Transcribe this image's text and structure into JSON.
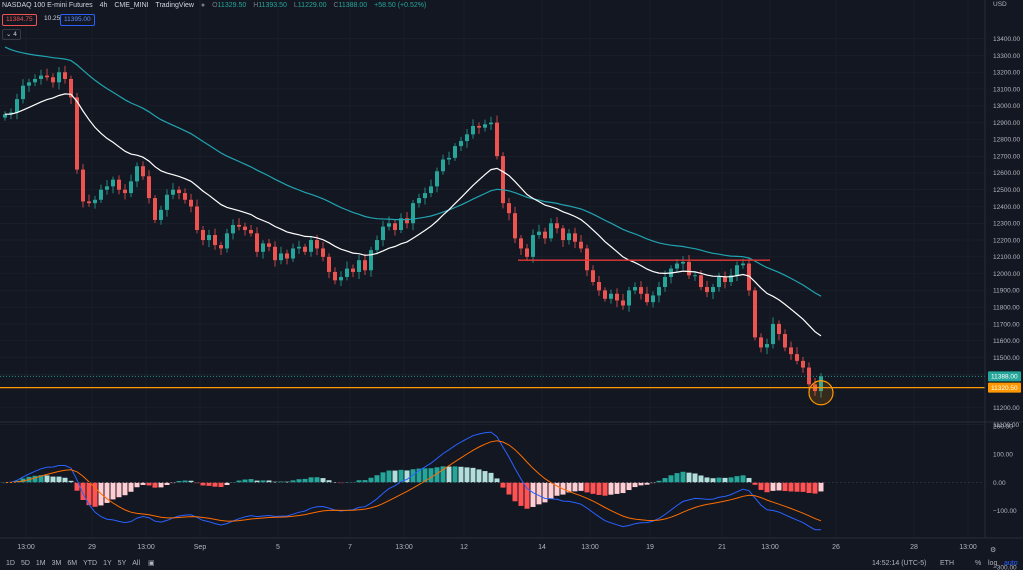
{
  "header": {
    "symbol": "NASDAQ 100 E-mini Futures",
    "interval": "4h",
    "exchange": "CME_MINI",
    "source": "TradingView",
    "o_label": "O",
    "o_value": "11329.50",
    "h_label": "H",
    "h_value": "11393.50",
    "l_label": "L",
    "l_value": "11229.00",
    "c_label": "C",
    "c_value": "11388.00",
    "change": "+58.50 (+0.52%)",
    "sell_price": "11384.75",
    "spread": "10.25",
    "buy_price": "11395.00",
    "indicator_count": "4",
    "currency": "USD"
  },
  "colors": {
    "bg": "#131722",
    "up": "#26a69a",
    "down": "#ef5350",
    "grid": "#1e222d",
    "ema_fast": "#ffffff",
    "ema_slow": "#20a4b0",
    "support": "#ff9800",
    "resistance": "#e53935",
    "macd": "#2962ff",
    "signal": "#ff6d00",
    "hist_up_strong": "#26a69a",
    "hist_up_weak": "#b2dfdb",
    "hist_down_strong": "#ff5252",
    "hist_down_weak": "#ffcdd2"
  },
  "chart_data": {
    "type": "candlestick",
    "price_axis": {
      "min": 11100,
      "max": 13500,
      "ticks": [
        13400,
        13300,
        13200,
        13100,
        13000,
        12900,
        12800,
        12700,
        12600,
        12500,
        12400,
        12300,
        12200,
        12100,
        12000,
        11900,
        11800,
        11700,
        11600,
        11500,
        11400,
        11200,
        11100
      ],
      "labels": [
        "13400.00",
        "13300.00",
        "13200.00",
        "13100.00",
        "13000.00",
        "12900.00",
        "12800.00",
        "12700.00",
        "12600.00",
        "12500.00",
        "12400.00",
        "12300.00",
        "12200.00",
        "12100.00",
        "12000.00",
        "11900.00",
        "11800.00",
        "11700.00",
        "11600.00",
        "11500.00",
        "11400.00",
        "11200.00",
        "11100.00"
      ]
    },
    "macd_axis": {
      "min": -300,
      "max": 200,
      "ticks": [
        200,
        100,
        0,
        -100,
        -300
      ],
      "labels": [
        "200.00",
        "100.00",
        "0.00",
        "−100.00",
        "−300.00"
      ]
    },
    "time_axis": {
      "labels": [
        "13:00",
        "29",
        "13:00",
        "Sep",
        "5",
        "7",
        "13:00",
        "12",
        "14",
        "13:00",
        "19",
        "21",
        "13:00",
        "26",
        "28",
        "13:00"
      ],
      "bars": [
        4,
        15,
        24,
        33,
        46,
        58,
        67,
        77,
        90,
        98,
        108,
        120,
        128,
        139,
        152,
        161
      ]
    },
    "last_price": 11388.0,
    "last_price_label": "11388.00",
    "support_price": 11320.5,
    "support_label": "11320.50",
    "resistance": {
      "price": 12080,
      "from_bar": 86,
      "to_bar": 128
    },
    "highlight": {
      "bar": 136,
      "price": 11290
    },
    "last_bar": 136,
    "close": [
      12950,
      12960,
      13040,
      13120,
      13140,
      13160,
      13180,
      13170,
      13140,
      13200,
      13160,
      13050,
      12620,
      12430,
      12420,
      12440,
      12500,
      12520,
      12560,
      12500,
      12480,
      12550,
      12640,
      12580,
      12450,
      12320,
      12380,
      12470,
      12500,
      12480,
      12440,
      12400,
      12260,
      12200,
      12230,
      12170,
      12150,
      12240,
      12290,
      12280,
      12260,
      12240,
      12130,
      12180,
      12160,
      12080,
      12120,
      12090,
      12150,
      12160,
      12130,
      12200,
      12150,
      12100,
      12010,
      11960,
      11980,
      12030,
      12010,
      12080,
      12020,
      12140,
      12200,
      12280,
      12300,
      12260,
      12330,
      12300,
      12420,
      12450,
      12480,
      12520,
      12610,
      12680,
      12690,
      12760,
      12790,
      12830,
      12880,
      12870,
      12890,
      12900,
      12700,
      12420,
      12360,
      12210,
      12150,
      12100,
      12230,
      12250,
      12210,
      12300,
      12270,
      12200,
      12240,
      12190,
      12150,
      12020,
      11950,
      11900,
      11850,
      11880,
      11840,
      11810,
      11900,
      11920,
      11880,
      11830,
      11870,
      11920,
      11980,
      12030,
      12060,
      12070,
      11990,
      11990,
      11920,
      11890,
      11920,
      11980,
      11950,
      11990,
      12050,
      12060,
      11900,
      11620,
      11560,
      11580,
      11700,
      11640,
      11560,
      11520,
      11480,
      11440,
      11340,
      11300,
      11388
    ]
  },
  "time_info": {
    "clock": "14:52:14 (UTC-5)",
    "session": "ETH",
    "percent": "%",
    "log": "log",
    "auto": "auto"
  },
  "timeframes": [
    "1D",
    "5D",
    "1M",
    "3M",
    "6M",
    "YTD",
    "1Y",
    "5Y",
    "All"
  ]
}
